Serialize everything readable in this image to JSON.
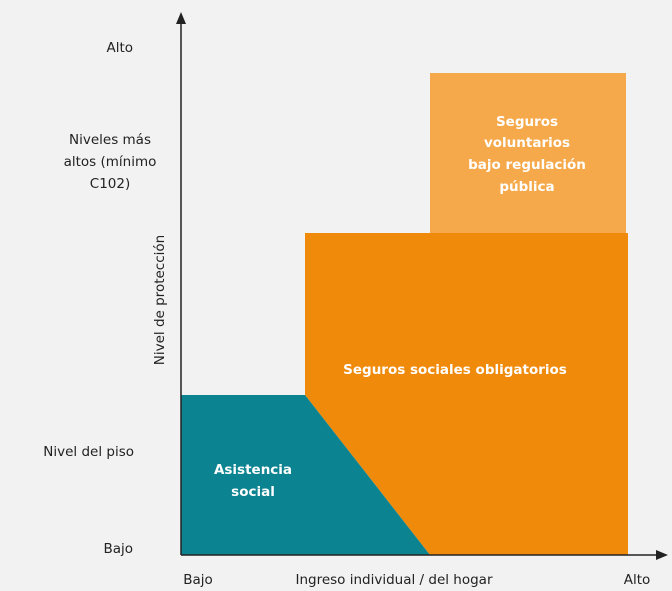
{
  "diagram": {
    "y_axis": {
      "title": "Nivel de protección",
      "levels": [
        {
          "lines": [
            "Alto"
          ]
        },
        {
          "lines": [
            "Niveles más",
            "altos (mínimo",
            "C102)"
          ]
        },
        {
          "lines": [
            "Nivel del piso"
          ]
        },
        {
          "lines": [
            "Bajo"
          ]
        }
      ]
    },
    "x_axis": {
      "low": "Bajo",
      "title": "Ingreso individual / del hogar",
      "high": "Alto"
    },
    "regions": [
      {
        "lines": [
          "Seguros",
          "voluntarios",
          "bajo regulación",
          "pública"
        ]
      },
      {
        "lines": [
          "Seguros sociales obligatorios"
        ]
      },
      {
        "lines": [
          "Asistencia",
          "social"
        ]
      }
    ]
  }
}
